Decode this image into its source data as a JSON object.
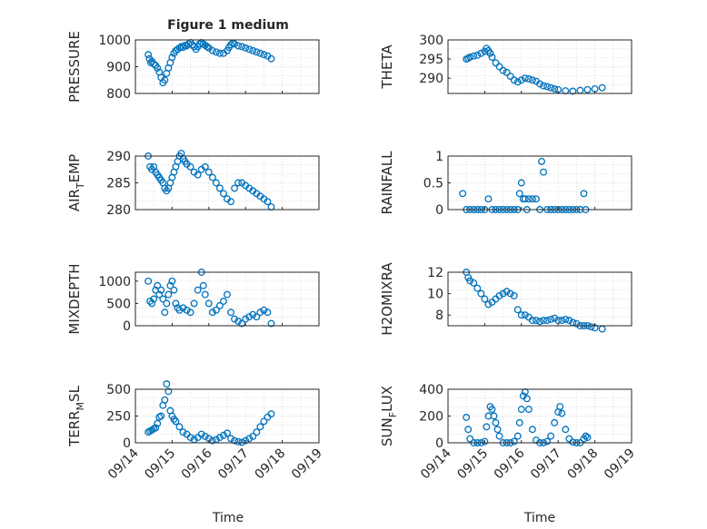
{
  "figure": {
    "title": "Figure 1 medium",
    "xlabel": "Time",
    "date_ticks": [
      "09/14",
      "09/15",
      "09/16",
      "09/17",
      "09/18",
      "09/19"
    ],
    "colors": {
      "marker": "#0072BD",
      "axis": "#262626",
      "grid": "#d0d0d0",
      "background": "#ffffff"
    }
  },
  "chart_data": [
    {
      "type": "scatter",
      "name": "pressure",
      "ylabel": "PRESSURE",
      "ylim": [
        800,
        1000
      ],
      "yticks": [
        800,
        900,
        1000
      ],
      "xlim": [
        0,
        5
      ],
      "points": [
        [
          0.35,
          945
        ],
        [
          0.38,
          930
        ],
        [
          0.42,
          915
        ],
        [
          0.45,
          920
        ],
        [
          0.5,
          910
        ],
        [
          0.55,
          905
        ],
        [
          0.6,
          895
        ],
        [
          0.65,
          880
        ],
        [
          0.7,
          860
        ],
        [
          0.75,
          840
        ],
        [
          0.8,
          850
        ],
        [
          0.85,
          875
        ],
        [
          0.9,
          895
        ],
        [
          0.95,
          915
        ],
        [
          1.0,
          935
        ],
        [
          1.05,
          950
        ],
        [
          1.1,
          960
        ],
        [
          1.15,
          965
        ],
        [
          1.2,
          970
        ],
        [
          1.25,
          975
        ],
        [
          1.3,
          972
        ],
        [
          1.35,
          980
        ],
        [
          1.4,
          978
        ],
        [
          1.45,
          985
        ],
        [
          1.5,
          990
        ],
        [
          1.55,
          982
        ],
        [
          1.6,
          975
        ],
        [
          1.65,
          965
        ],
        [
          1.7,
          975
        ],
        [
          1.75,
          985
        ],
        [
          1.8,
          990
        ],
        [
          1.85,
          985
        ],
        [
          1.9,
          980
        ],
        [
          1.95,
          975
        ],
        [
          2.0,
          970
        ],
        [
          2.1,
          960
        ],
        [
          2.2,
          955
        ],
        [
          2.3,
          950
        ],
        [
          2.4,
          950
        ],
        [
          2.5,
          960
        ],
        [
          2.55,
          972
        ],
        [
          2.6,
          982
        ],
        [
          2.65,
          988
        ],
        [
          2.7,
          985
        ],
        [
          2.8,
          978
        ],
        [
          2.9,
          975
        ],
        [
          3.0,
          970
        ],
        [
          3.1,
          965
        ],
        [
          3.2,
          960
        ],
        [
          3.3,
          955
        ],
        [
          3.4,
          950
        ],
        [
          3.5,
          945
        ],
        [
          3.6,
          940
        ],
        [
          3.7,
          930
        ]
      ]
    },
    {
      "type": "scatter",
      "name": "theta",
      "ylabel": "THETA",
      "ylim": [
        286,
        300
      ],
      "yticks": [
        290,
        295,
        300
      ],
      "xlim": [
        0,
        5
      ],
      "points": [
        [
          0.5,
          295
        ],
        [
          0.55,
          295.2
        ],
        [
          0.6,
          295.5
        ],
        [
          0.7,
          295.8
        ],
        [
          0.8,
          296
        ],
        [
          0.9,
          296.5
        ],
        [
          1.0,
          297
        ],
        [
          1.05,
          297.8
        ],
        [
          1.1,
          297.2
        ],
        [
          1.15,
          296.5
        ],
        [
          1.2,
          295.5
        ],
        [
          1.3,
          294
        ],
        [
          1.4,
          293
        ],
        [
          1.5,
          292
        ],
        [
          1.6,
          291.5
        ],
        [
          1.7,
          290.5
        ],
        [
          1.8,
          289.5
        ],
        [
          1.9,
          289
        ],
        [
          2.0,
          289.5
        ],
        [
          2.1,
          290
        ],
        [
          2.2,
          289.8
        ],
        [
          2.3,
          289.5
        ],
        [
          2.4,
          289.2
        ],
        [
          2.5,
          288.5
        ],
        [
          2.6,
          288
        ],
        [
          2.7,
          287.8
        ],
        [
          2.8,
          287.5
        ],
        [
          2.9,
          287.2
        ],
        [
          3.0,
          287
        ],
        [
          3.2,
          286.7
        ],
        [
          3.4,
          286.6
        ],
        [
          3.6,
          286.8
        ],
        [
          3.8,
          287
        ],
        [
          4.0,
          287.2
        ],
        [
          4.2,
          287.5
        ]
      ]
    },
    {
      "type": "scatter",
      "name": "air-temp",
      "ylabel": "AIR_TEMP",
      "ylim": [
        280,
        290
      ],
      "yticks": [
        280,
        285,
        290
      ],
      "xlim": [
        0,
        5
      ],
      "points": [
        [
          0.35,
          290
        ],
        [
          0.4,
          288
        ],
        [
          0.45,
          287.5
        ],
        [
          0.5,
          288
        ],
        [
          0.55,
          287
        ],
        [
          0.6,
          286.5
        ],
        [
          0.65,
          286
        ],
        [
          0.7,
          285.5
        ],
        [
          0.75,
          285
        ],
        [
          0.8,
          284
        ],
        [
          0.85,
          283.5
        ],
        [
          0.9,
          284
        ],
        [
          0.95,
          285
        ],
        [
          1.0,
          286
        ],
        [
          1.05,
          287
        ],
        [
          1.1,
          288
        ],
        [
          1.15,
          289
        ],
        [
          1.2,
          290
        ],
        [
          1.25,
          290.5
        ],
        [
          1.3,
          289.5
        ],
        [
          1.35,
          289
        ],
        [
          1.4,
          288.5
        ],
        [
          1.5,
          288
        ],
        [
          1.6,
          287
        ],
        [
          1.7,
          286.5
        ],
        [
          1.8,
          287.5
        ],
        [
          1.9,
          288
        ],
        [
          2.0,
          287
        ],
        [
          2.1,
          286
        ],
        [
          2.2,
          285
        ],
        [
          2.3,
          284
        ],
        [
          2.4,
          283
        ],
        [
          2.5,
          282
        ],
        [
          2.6,
          281.5
        ],
        [
          2.7,
          284
        ],
        [
          2.8,
          285
        ],
        [
          2.9,
          285
        ],
        [
          3.0,
          284.5
        ],
        [
          3.1,
          284
        ],
        [
          3.2,
          283.5
        ],
        [
          3.3,
          283
        ],
        [
          3.4,
          282.5
        ],
        [
          3.5,
          282
        ],
        [
          3.6,
          281.5
        ],
        [
          3.7,
          280.5
        ]
      ]
    },
    {
      "type": "scatter",
      "name": "rainfall",
      "ylabel": "RAINFALL",
      "ylim": [
        0,
        1
      ],
      "yticks": [
        0,
        0.5,
        1
      ],
      "xlim": [
        0,
        5
      ],
      "points": [
        [
          0.4,
          0.3
        ],
        [
          0.5,
          0
        ],
        [
          0.6,
          0
        ],
        [
          0.7,
          0
        ],
        [
          0.8,
          0
        ],
        [
          0.9,
          0
        ],
        [
          1.0,
          0
        ],
        [
          1.1,
          0.2
        ],
        [
          1.2,
          0
        ],
        [
          1.3,
          0
        ],
        [
          1.4,
          0
        ],
        [
          1.5,
          0
        ],
        [
          1.6,
          0
        ],
        [
          1.7,
          0
        ],
        [
          1.8,
          0
        ],
        [
          1.9,
          0
        ],
        [
          1.95,
          0.3
        ],
        [
          2.0,
          0.5
        ],
        [
          2.05,
          0.2
        ],
        [
          2.1,
          0.2
        ],
        [
          2.15,
          0
        ],
        [
          2.2,
          0.2
        ],
        [
          2.3,
          0.2
        ],
        [
          2.4,
          0.2
        ],
        [
          2.5,
          0
        ],
        [
          2.55,
          0.9
        ],
        [
          2.6,
          0.7
        ],
        [
          2.7,
          0
        ],
        [
          2.8,
          0
        ],
        [
          2.9,
          0
        ],
        [
          3.0,
          0
        ],
        [
          3.1,
          0
        ],
        [
          3.2,
          0
        ],
        [
          3.3,
          0
        ],
        [
          3.4,
          0
        ],
        [
          3.5,
          0
        ],
        [
          3.6,
          0
        ],
        [
          3.7,
          0.3
        ],
        [
          3.75,
          0
        ]
      ]
    },
    {
      "type": "scatter",
      "name": "mixdepth",
      "ylabel": "MIXDEPTH",
      "ylim": [
        0,
        1200
      ],
      "yticks": [
        0,
        500,
        1000
      ],
      "xlim": [
        0,
        5
      ],
      "points": [
        [
          0.35,
          1000
        ],
        [
          0.4,
          550
        ],
        [
          0.45,
          500
        ],
        [
          0.5,
          600
        ],
        [
          0.55,
          800
        ],
        [
          0.6,
          900
        ],
        [
          0.65,
          700
        ],
        [
          0.7,
          800
        ],
        [
          0.75,
          600
        ],
        [
          0.8,
          300
        ],
        [
          0.85,
          500
        ],
        [
          0.9,
          700
        ],
        [
          0.95,
          900
        ],
        [
          1.0,
          1000
        ],
        [
          1.05,
          800
        ],
        [
          1.1,
          500
        ],
        [
          1.15,
          400
        ],
        [
          1.2,
          350
        ],
        [
          1.3,
          400
        ],
        [
          1.4,
          350
        ],
        [
          1.5,
          300
        ],
        [
          1.6,
          500
        ],
        [
          1.7,
          800
        ],
        [
          1.8,
          1200
        ],
        [
          1.85,
          900
        ],
        [
          1.9,
          700
        ],
        [
          2.0,
          500
        ],
        [
          2.1,
          300
        ],
        [
          2.2,
          350
        ],
        [
          2.3,
          450
        ],
        [
          2.4,
          550
        ],
        [
          2.5,
          700
        ],
        [
          2.6,
          300
        ],
        [
          2.7,
          150
        ],
        [
          2.8,
          100
        ],
        [
          2.9,
          50
        ],
        [
          3.0,
          150
        ],
        [
          3.1,
          200
        ],
        [
          3.2,
          250
        ],
        [
          3.3,
          200
        ],
        [
          3.4,
          300
        ],
        [
          3.5,
          350
        ],
        [
          3.6,
          300
        ],
        [
          3.7,
          50
        ]
      ]
    },
    {
      "type": "scatter",
      "name": "h2omixra",
      "ylabel": "H2OMIXRA",
      "ylim": [
        7,
        12
      ],
      "yticks": [
        8,
        10,
        12
      ],
      "xlim": [
        0,
        5
      ],
      "points": [
        [
          0.5,
          12
        ],
        [
          0.55,
          11.5
        ],
        [
          0.6,
          11.2
        ],
        [
          0.7,
          11
        ],
        [
          0.8,
          10.5
        ],
        [
          0.9,
          10
        ],
        [
          1.0,
          9.5
        ],
        [
          1.1,
          9
        ],
        [
          1.2,
          9.2
        ],
        [
          1.3,
          9.5
        ],
        [
          1.4,
          9.8
        ],
        [
          1.5,
          10
        ],
        [
          1.6,
          10.2
        ],
        [
          1.7,
          10
        ],
        [
          1.8,
          9.8
        ],
        [
          1.9,
          8.5
        ],
        [
          2.0,
          8
        ],
        [
          2.1,
          8
        ],
        [
          2.2,
          7.8
        ],
        [
          2.3,
          7.5
        ],
        [
          2.4,
          7.5
        ],
        [
          2.5,
          7.4
        ],
        [
          2.6,
          7.5
        ],
        [
          2.7,
          7.5
        ],
        [
          2.8,
          7.6
        ],
        [
          2.9,
          7.7
        ],
        [
          3.0,
          7.5
        ],
        [
          3.1,
          7.5
        ],
        [
          3.2,
          7.6
        ],
        [
          3.3,
          7.5
        ],
        [
          3.4,
          7.3
        ],
        [
          3.5,
          7.2
        ],
        [
          3.6,
          7
        ],
        [
          3.7,
          7
        ],
        [
          3.8,
          7
        ],
        [
          3.9,
          6.9
        ],
        [
          4.0,
          6.8
        ],
        [
          4.2,
          6.7
        ]
      ]
    },
    {
      "type": "scatter",
      "name": "terr-msl",
      "ylabel": "TERR_MSL",
      "ylim": [
        0,
        500
      ],
      "yticks": [
        0,
        250,
        500
      ],
      "xlim": [
        0,
        5
      ],
      "points": [
        [
          0.35,
          100
        ],
        [
          0.4,
          110
        ],
        [
          0.45,
          120
        ],
        [
          0.5,
          130
        ],
        [
          0.55,
          140
        ],
        [
          0.6,
          180
        ],
        [
          0.65,
          240
        ],
        [
          0.7,
          250
        ],
        [
          0.75,
          350
        ],
        [
          0.8,
          400
        ],
        [
          0.85,
          550
        ],
        [
          0.9,
          480
        ],
        [
          0.95,
          300
        ],
        [
          1.0,
          250
        ],
        [
          1.05,
          220
        ],
        [
          1.1,
          200
        ],
        [
          1.2,
          150
        ],
        [
          1.3,
          100
        ],
        [
          1.4,
          80
        ],
        [
          1.5,
          50
        ],
        [
          1.6,
          30
        ],
        [
          1.7,
          50
        ],
        [
          1.8,
          80
        ],
        [
          1.9,
          60
        ],
        [
          2.0,
          40
        ],
        [
          2.1,
          20
        ],
        [
          2.2,
          30
        ],
        [
          2.3,
          50
        ],
        [
          2.4,
          70
        ],
        [
          2.5,
          90
        ],
        [
          2.6,
          40
        ],
        [
          2.7,
          20
        ],
        [
          2.8,
          10
        ],
        [
          2.9,
          5
        ],
        [
          3.0,
          20
        ],
        [
          3.1,
          40
        ],
        [
          3.2,
          60
        ],
        [
          3.3,
          100
        ],
        [
          3.4,
          150
        ],
        [
          3.5,
          200
        ],
        [
          3.6,
          240
        ],
        [
          3.7,
          270
        ]
      ]
    },
    {
      "type": "scatter",
      "name": "sun-flux",
      "ylabel": "SUN_FLUX",
      "ylim": [
        0,
        400
      ],
      "yticks": [
        0,
        200,
        400
      ],
      "xlim": [
        0,
        5
      ],
      "points": [
        [
          0.5,
          190
        ],
        [
          0.55,
          100
        ],
        [
          0.6,
          30
        ],
        [
          0.7,
          0
        ],
        [
          0.8,
          0
        ],
        [
          0.9,
          0
        ],
        [
          1.0,
          10
        ],
        [
          1.05,
          120
        ],
        [
          1.1,
          200
        ],
        [
          1.15,
          270
        ],
        [
          1.2,
          250
        ],
        [
          1.25,
          200
        ],
        [
          1.3,
          150
        ],
        [
          1.35,
          100
        ],
        [
          1.4,
          50
        ],
        [
          1.5,
          0
        ],
        [
          1.6,
          0
        ],
        [
          1.7,
          0
        ],
        [
          1.8,
          10
        ],
        [
          1.9,
          50
        ],
        [
          1.95,
          150
        ],
        [
          2.0,
          250
        ],
        [
          2.05,
          350
        ],
        [
          2.1,
          380
        ],
        [
          2.15,
          330
        ],
        [
          2.2,
          250
        ],
        [
          2.3,
          100
        ],
        [
          2.4,
          20
        ],
        [
          2.5,
          0
        ],
        [
          2.6,
          0
        ],
        [
          2.7,
          10
        ],
        [
          2.8,
          50
        ],
        [
          2.9,
          150
        ],
        [
          3.0,
          230
        ],
        [
          3.05,
          270
        ],
        [
          3.1,
          220
        ],
        [
          3.2,
          100
        ],
        [
          3.3,
          30
        ],
        [
          3.4,
          5
        ],
        [
          3.5,
          0
        ],
        [
          3.6,
          0
        ],
        [
          3.7,
          30
        ],
        [
          3.75,
          50
        ],
        [
          3.8,
          40
        ]
      ]
    }
  ]
}
